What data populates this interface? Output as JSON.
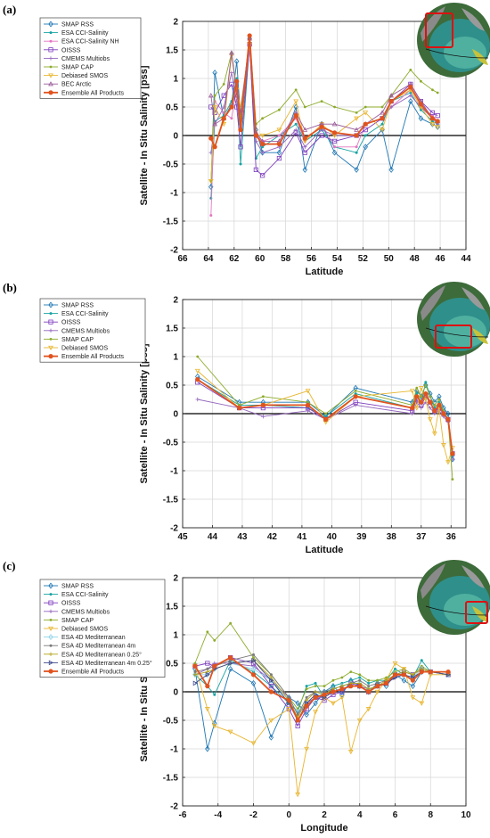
{
  "chart_data": [
    {
      "type": "line",
      "panel_label": "(a)",
      "xlabel": "Latitude",
      "ylabel": "Satellite - In Situ Salinity [pss]",
      "xlim": [
        66,
        44
      ],
      "ylim": [
        -2,
        2
      ],
      "x_reversed": true,
      "xticks": [
        66,
        64,
        62,
        60,
        58,
        56,
        54,
        52,
        50,
        48,
        46,
        44
      ],
      "yticks": [
        -2,
        -1.5,
        -1,
        -0.5,
        0,
        0.5,
        1,
        1.5,
        2
      ],
      "grid": true,
      "legend_position": "top-left",
      "x": [
        63.8,
        63.5,
        62.8,
        62.2,
        61.8,
        61.5,
        60.8,
        60.3,
        59.8,
        58.5,
        57.2,
        56.5,
        55.2,
        54.2,
        52.5,
        51.8,
        50.5,
        49.8,
        48.3,
        47.5,
        46.6,
        46.2
      ],
      "series": [
        {
          "name": "SMAP RSS",
          "color": "#1f77b4",
          "marker": "diamond",
          "values": [
            -0.9,
            1.1,
            0.3,
            0.55,
            1.3,
            0.3,
            1.7,
            0.1,
            -0.3,
            -0.3,
            0.5,
            -0.6,
            0.2,
            -0.3,
            -0.6,
            -0.2,
            0.1,
            -0.6,
            0.6,
            0.3,
            0.2,
            0.15
          ]
        },
        {
          "name": "ESA CCI-Salinity",
          "color": "#17a3a3",
          "marker": "dot",
          "values": [
            -1.1,
            0.25,
            0.35,
            0.6,
            1.0,
            -0.5,
            1.6,
            -0.4,
            -0.2,
            0.0,
            0.2,
            -0.1,
            0.1,
            -0.2,
            -0.3,
            0.0,
            0.2,
            0.6,
            0.75,
            0.45,
            0.25,
            0.2
          ]
        },
        {
          "name": "ESA CCI-Salinity NH",
          "color": "#e377c2",
          "marker": "dot",
          "values": [
            -1.4,
            0.6,
            0.4,
            0.3,
            0.9,
            0.2,
            1.5,
            0.0,
            -0.1,
            0.0,
            0.3,
            -0.1,
            0.2,
            -0.2,
            -0.2,
            0.2,
            0.3,
            0.5,
            0.8,
            0.5,
            0.35,
            0.25
          ]
        },
        {
          "name": "OISSS",
          "color": "#7f3fbf",
          "marker": "square",
          "values": [
            0.5,
            0.4,
            0.7,
            0.9,
            0.5,
            -0.2,
            1.6,
            -0.6,
            -0.7,
            -0.4,
            0.05,
            -0.3,
            0.0,
            -0.1,
            0.0,
            0.1,
            0.3,
            0.6,
            0.9,
            0.6,
            0.4,
            0.35
          ]
        },
        {
          "name": "CMEMS Multiobs",
          "color": "#9467bd",
          "marker": "plus",
          "values": [
            -0.3,
            0.2,
            0.5,
            1.1,
            0.6,
            0.1,
            1.6,
            -0.1,
            -0.3,
            -0.2,
            0.1,
            -0.2,
            0.1,
            0.0,
            0.0,
            0.2,
            0.3,
            0.5,
            0.7,
            0.5,
            0.3,
            0.2
          ]
        },
        {
          "name": "SMAP CAP",
          "color": "#8cab2a",
          "marker": "star",
          "values": [
            -0.8,
            0.7,
            0.9,
            1.45,
            0.8,
            0.3,
            1.75,
            0.2,
            0.3,
            0.45,
            0.8,
            0.5,
            0.6,
            0.5,
            0.4,
            0.5,
            0.5,
            0.7,
            1.15,
            0.95,
            0.8,
            0.75
          ]
        },
        {
          "name": "Debiased SMOS",
          "color": "#e8b52e",
          "marker": "triangle-down",
          "values": [
            -0.8,
            0.5,
            0.2,
            1.4,
            0.8,
            0.5,
            1.6,
            0.0,
            0.0,
            0.1,
            0.6,
            -0.1,
            0.2,
            0.0,
            0.3,
            0.4,
            0.1,
            0.6,
            0.8,
            0.5,
            0.2,
            0.15
          ]
        },
        {
          "name": "BEC Arctic",
          "color": "#9a5c9a",
          "marker": "triangle-up",
          "values": [
            0.7,
            0.2,
            0.3,
            1.45,
            0.7,
            0.4,
            1.7,
            0.05,
            -0.1,
            -0.1,
            0.4,
            0.1,
            0.2,
            0.2,
            0.1,
            0.2,
            0.4,
            0.7,
            0.9,
            0.6,
            0.3,
            0.25
          ]
        },
        {
          "name": "Ensemble All Products",
          "color": "#e0531f",
          "marker": "dot-large",
          "thick": true,
          "values": [
            -0.05,
            -0.2,
            0.3,
            0.5,
            0.95,
            0.1,
            1.75,
            0.0,
            -0.15,
            -0.15,
            0.35,
            -0.05,
            0.15,
            0.05,
            0.0,
            0.2,
            0.3,
            0.6,
            0.85,
            0.55,
            0.3,
            0.25
          ]
        }
      ]
    },
    {
      "type": "line",
      "panel_label": "(b)",
      "xlabel": "Latitude",
      "ylabel": "Satellite - In Situ Salinity [pss]",
      "xlim": [
        45,
        35.5
      ],
      "ylim": [
        -2,
        2
      ],
      "x_reversed": true,
      "xticks": [
        45,
        44,
        43,
        42,
        41,
        40,
        39,
        38,
        37,
        36
      ],
      "yticks": [
        -2,
        -1.5,
        -1,
        -0.5,
        0,
        0.5,
        1,
        1.5,
        2
      ],
      "grid": true,
      "legend_position": "top-left",
      "x": [
        44.5,
        43.1,
        42.3,
        40.8,
        40.2,
        39.2,
        37.3,
        37.15,
        37.0,
        36.85,
        36.7,
        36.55,
        36.4,
        36.25,
        36.1,
        35.95
      ],
      "series": [
        {
          "name": "SMAP RSS",
          "color": "#1f77b4",
          "marker": "diamond",
          "values": [
            0.65,
            0.2,
            0.2,
            0.2,
            -0.05,
            0.45,
            0.2,
            0.4,
            0.3,
            0.5,
            0.35,
            0.2,
            0.3,
            0.1,
            0.0,
            -0.8
          ]
        },
        {
          "name": "ESA CCI-Salinity",
          "color": "#17a3a3",
          "marker": "dot",
          "values": [
            0.6,
            0.15,
            0.15,
            0.1,
            -0.05,
            0.35,
            0.1,
            0.35,
            0.2,
            0.55,
            0.3,
            0.1,
            0.2,
            0.05,
            -0.1,
            -0.75
          ]
        },
        {
          "name": "OISSS",
          "color": "#7f3fbf",
          "marker": "square",
          "values": [
            0.55,
            0.1,
            0.1,
            0.1,
            -0.1,
            0.2,
            0.05,
            0.25,
            0.15,
            0.3,
            0.2,
            0.05,
            0.1,
            0.0,
            -0.1,
            -0.7
          ]
        },
        {
          "name": "CMEMS Multiobs",
          "color": "#9467bd",
          "marker": "plus",
          "values": [
            0.25,
            0.1,
            -0.05,
            0.05,
            -0.1,
            0.15,
            0.0,
            0.2,
            0.1,
            0.2,
            0.1,
            0.0,
            0.05,
            -0.05,
            -0.15,
            -0.8
          ]
        },
        {
          "name": "SMAP CAP",
          "color": "#8cab2a",
          "marker": "star",
          "values": [
            1.0,
            0.15,
            0.3,
            0.2,
            0.0,
            0.4,
            0.15,
            0.45,
            0.3,
            0.5,
            0.3,
            0.15,
            0.25,
            0.05,
            -0.1,
            -1.15
          ]
        },
        {
          "name": "Debiased SMOS",
          "color": "#e8b52e",
          "marker": "triangle-down",
          "values": [
            0.75,
            0.1,
            0.15,
            0.4,
            -0.15,
            0.3,
            0.4,
            0.1,
            0.45,
            0.25,
            -0.1,
            -0.35,
            0.1,
            -0.55,
            -0.85,
            -0.6
          ]
        },
        {
          "name": "Ensemble All Products",
          "color": "#e0531f",
          "marker": "dot-large",
          "thick": true,
          "values": [
            0.6,
            0.1,
            0.15,
            0.15,
            -0.1,
            0.3,
            0.1,
            0.3,
            0.2,
            0.35,
            0.2,
            0.05,
            0.15,
            0.0,
            -0.1,
            -0.7
          ]
        }
      ]
    },
    {
      "type": "line",
      "panel_label": "(c)",
      "xlabel": "Longitude",
      "ylabel": "Satellite - In Situ Salinity [pss]",
      "xlim": [
        -6,
        10
      ],
      "ylim": [
        -2,
        2
      ],
      "x_reversed": false,
      "xticks": [
        -6,
        -4,
        -2,
        0,
        2,
        4,
        6,
        8,
        10
      ],
      "yticks": [
        -2,
        -1.5,
        -1,
        -0.5,
        0,
        0.5,
        1,
        1.5,
        2
      ],
      "grid": true,
      "legend_position": "top-left",
      "x": [
        -5.3,
        -4.6,
        -4.2,
        -3.3,
        -2.0,
        -1.0,
        0.0,
        0.5,
        1.0,
        1.5,
        2.0,
        2.5,
        3.0,
        3.5,
        4.0,
        4.5,
        5.0,
        5.5,
        6.0,
        6.5,
        7.0,
        7.5,
        8.0,
        9.0
      ],
      "series": [
        {
          "name": "SMAP RSS",
          "color": "#1f77b4",
          "marker": "diamond",
          "values": [
            0.4,
            -1.0,
            -0.55,
            0.4,
            0.15,
            -0.8,
            -0.1,
            -0.2,
            -0.4,
            -0.2,
            0.0,
            0.1,
            -0.05,
            0.2,
            0.1,
            0.0,
            0.15,
            0.1,
            0.3,
            0.2,
            0.1,
            0.35,
            0.35,
            0.3
          ]
        },
        {
          "name": "ESA CCI-Salinity",
          "color": "#17a3a3",
          "marker": "dot",
          "values": [
            0.3,
            0.1,
            -0.05,
            0.55,
            0.35,
            0.1,
            -0.2,
            -0.35,
            0.1,
            0.15,
            -0.1,
            0.1,
            0.15,
            0.2,
            0.25,
            0.15,
            0.2,
            0.2,
            0.4,
            0.3,
            0.25,
            0.55,
            0.35,
            0.35
          ]
        },
        {
          "name": "OISSS",
          "color": "#7f3fbf",
          "marker": "square",
          "values": [
            0.45,
            0.5,
            0.45,
            0.6,
            0.5,
            0.1,
            -0.3,
            -0.6,
            -0.3,
            -0.1,
            -0.15,
            -0.05,
            0.0,
            0.15,
            0.1,
            0.0,
            0.1,
            0.15,
            0.3,
            0.35,
            0.3,
            0.4,
            0.35,
            0.3
          ]
        },
        {
          "name": "CMEMS Multiobs",
          "color": "#9467bd",
          "marker": "plus",
          "values": [
            0.3,
            0.4,
            0.5,
            0.5,
            0.45,
            0.2,
            -0.1,
            -0.4,
            -0.2,
            -0.1,
            -0.1,
            0.0,
            0.05,
            0.1,
            0.1,
            0.05,
            0.1,
            0.15,
            0.25,
            0.3,
            0.25,
            0.35,
            0.35,
            0.3
          ]
        },
        {
          "name": "SMAP CAP",
          "color": "#8cab2a",
          "marker": "star",
          "values": [
            0.5,
            1.05,
            0.9,
            1.2,
            0.6,
            0.3,
            -0.1,
            -0.3,
            0.05,
            0.1,
            0.1,
            0.2,
            0.25,
            0.35,
            0.3,
            0.2,
            0.2,
            0.25,
            0.35,
            0.4,
            0.3,
            0.45,
            0.35,
            0.35
          ]
        },
        {
          "name": "Debiased SMOS",
          "color": "#e8b52e",
          "marker": "triangle-down",
          "values": [
            0.45,
            -0.3,
            -0.6,
            -0.7,
            -0.9,
            -0.5,
            -0.3,
            -1.8,
            -1.0,
            -0.35,
            -0.1,
            -0.2,
            -0.1,
            -1.05,
            -0.5,
            -0.3,
            0.0,
            0.2,
            0.5,
            0.4,
            -0.1,
            -0.2,
            0.3,
            0.3
          ]
        },
        {
          "name": "ESA 4D Mediterranean",
          "color": "#8fd3e8",
          "marker": "diamond",
          "values": [
            0.3,
            0.3,
            0.4,
            0.5,
            0.4,
            0.2,
            -0.15,
            -0.35,
            -0.2,
            -0.05,
            -0.05,
            0.05,
            0.1,
            0.15,
            0.15,
            0.05,
            0.1,
            0.15,
            0.3,
            0.3,
            0.25,
            0.4,
            0.35,
            0.3
          ]
        },
        {
          "name": "ESA 4D Mediterranean 4m",
          "color": "#7a7a7a",
          "marker": "dot",
          "values": [
            0.35,
            0.4,
            0.45,
            0.55,
            0.65,
            0.3,
            -0.1,
            -0.4,
            -0.1,
            0.0,
            0.0,
            0.05,
            0.1,
            0.15,
            0.2,
            0.1,
            0.15,
            0.2,
            0.3,
            0.35,
            0.3,
            0.4,
            0.35,
            0.3
          ]
        },
        {
          "name": "ESA 4D Mediterranean 0.25°",
          "color": "#b4a31a",
          "marker": "plus",
          "values": [
            0.3,
            0.35,
            0.4,
            0.5,
            0.55,
            0.25,
            -0.15,
            -0.45,
            -0.15,
            0.0,
            -0.05,
            0.05,
            0.1,
            0.15,
            0.15,
            0.05,
            0.1,
            0.2,
            0.3,
            0.35,
            0.3,
            0.4,
            0.35,
            0.3
          ]
        },
        {
          "name": "ESA 4D Mediterranean 4m 0.25°",
          "color": "#3c4a8c",
          "marker": "triangle-right",
          "values": [
            0.15,
            0.3,
            0.4,
            0.5,
            0.55,
            0.2,
            -0.2,
            -0.5,
            -0.2,
            -0.05,
            -0.1,
            0.0,
            0.05,
            0.1,
            0.1,
            0.0,
            0.1,
            0.15,
            0.25,
            0.3,
            0.25,
            0.35,
            0.35,
            0.3
          ]
        },
        {
          "name": "Ensemble All Products",
          "color": "#e0531f",
          "marker": "dot-large",
          "thick": true,
          "values": [
            0.45,
            0.1,
            0.45,
            0.6,
            0.3,
            0.0,
            -0.15,
            -0.5,
            -0.25,
            -0.1,
            -0.05,
            0.0,
            0.05,
            0.1,
            0.1,
            0.0,
            0.1,
            0.15,
            0.3,
            0.3,
            0.2,
            0.35,
            0.35,
            0.35
          ]
        }
      ]
    }
  ]
}
